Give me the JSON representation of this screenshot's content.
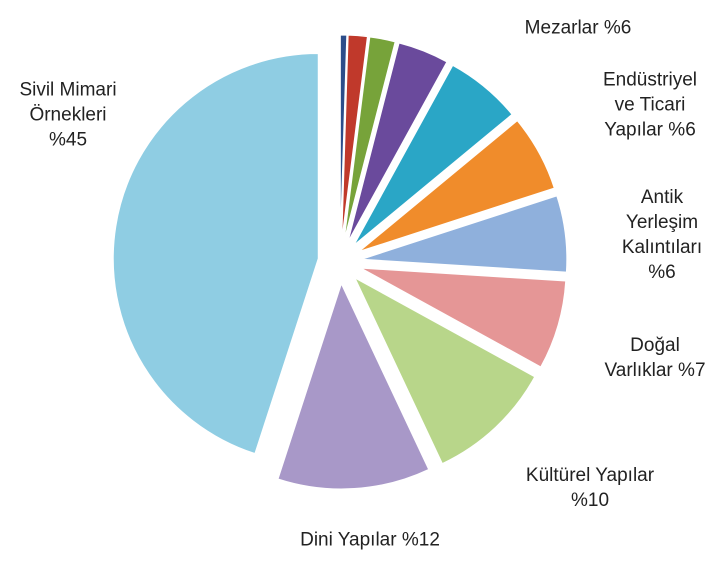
{
  "chart_data": {
    "type": "pie",
    "categories": [
      null,
      null,
      null,
      null,
      "Mezarlar",
      "Endüstriyel ve Ticari Yapılar",
      "Antik Yerleşim Kalıntıları",
      "Doğal Varlıklar",
      "Kültürel Yapılar",
      "Dini Yapılar",
      "Sivil Mimari Örnekleri"
    ],
    "values": [
      0.5,
      1.5,
      2,
      4,
      6,
      6,
      6,
      7,
      10,
      12,
      45
    ],
    "value_labels": [
      null,
      null,
      null,
      null,
      "%6",
      "%6",
      "%6",
      "%7",
      "%10",
      "%12",
      "%45"
    ],
    "colors": [
      "#2c4d8a",
      "#c0392b",
      "#77a33a",
      "#6a4a9c",
      "#2aa6c6",
      "#f08c2b",
      "#8fb0dc",
      "#e59696",
      "#b8d68a",
      "#a898c8",
      "#8fcde3"
    ]
  }
}
